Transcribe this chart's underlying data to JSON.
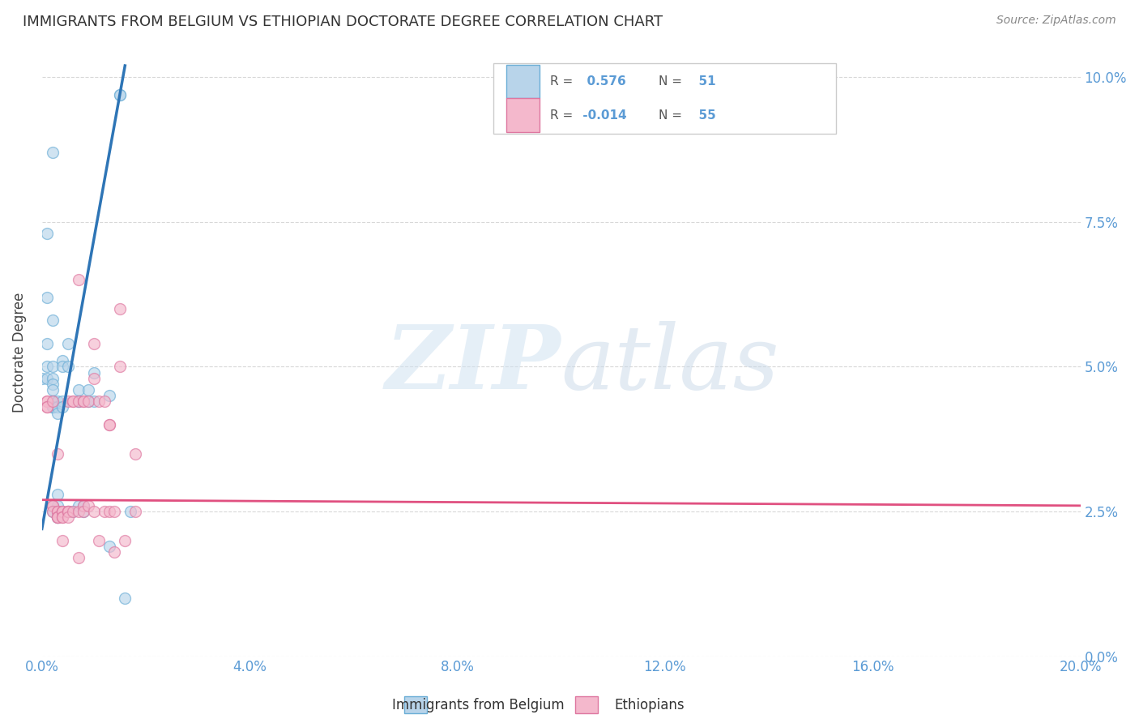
{
  "title": "IMMIGRANTS FROM BELGIUM VS ETHIOPIAN DOCTORATE DEGREE CORRELATION CHART",
  "source": "Source: ZipAtlas.com",
  "ylabel": "Doctorate Degree",
  "x_min": 0.0,
  "x_max": 0.2,
  "y_min": 0.0,
  "y_max": 0.105,
  "x_ticks": [
    0.0,
    0.04,
    0.08,
    0.12,
    0.16,
    0.2
  ],
  "y_ticks": [
    0.0,
    0.025,
    0.05,
    0.075,
    0.1
  ],
  "legend_entries": [
    {
      "label": "Immigrants from Belgium",
      "color": "#b8d4ea",
      "edge_color": "#6baed6",
      "R": "0.576",
      "N": "51"
    },
    {
      "label": "Ethiopians",
      "color": "#f4b8cc",
      "edge_color": "#de77a0",
      "R": "-0.014",
      "N": "55"
    }
  ],
  "belgium_scatter": {
    "color": "#b8d4ea",
    "border_color": "#6baed6",
    "points": [
      [
        0.0,
        0.048
      ],
      [
        0.001,
        0.073
      ],
      [
        0.001,
        0.062
      ],
      [
        0.001,
        0.054
      ],
      [
        0.001,
        0.05
      ],
      [
        0.001,
        0.048
      ],
      [
        0.002,
        0.087
      ],
      [
        0.002,
        0.058
      ],
      [
        0.002,
        0.05
      ],
      [
        0.002,
        0.048
      ],
      [
        0.002,
        0.047
      ],
      [
        0.002,
        0.046
      ],
      [
        0.002,
        0.044
      ],
      [
        0.002,
        0.044
      ],
      [
        0.002,
        0.043
      ],
      [
        0.002,
        0.043
      ],
      [
        0.002,
        0.043
      ],
      [
        0.002,
        0.026
      ],
      [
        0.002,
        0.025
      ],
      [
        0.003,
        0.044
      ],
      [
        0.003,
        0.043
      ],
      [
        0.003,
        0.042
      ],
      [
        0.003,
        0.028
      ],
      [
        0.003,
        0.026
      ],
      [
        0.003,
        0.025
      ],
      [
        0.003,
        0.024
      ],
      [
        0.003,
        0.024
      ],
      [
        0.004,
        0.051
      ],
      [
        0.004,
        0.05
      ],
      [
        0.004,
        0.044
      ],
      [
        0.004,
        0.043
      ],
      [
        0.005,
        0.054
      ],
      [
        0.005,
        0.05
      ],
      [
        0.005,
        0.025
      ],
      [
        0.006,
        0.025
      ],
      [
        0.007,
        0.046
      ],
      [
        0.007,
        0.044
      ],
      [
        0.007,
        0.044
      ],
      [
        0.007,
        0.026
      ],
      [
        0.008,
        0.026
      ],
      [
        0.008,
        0.025
      ],
      [
        0.009,
        0.046
      ],
      [
        0.009,
        0.044
      ],
      [
        0.01,
        0.044
      ],
      [
        0.01,
        0.049
      ],
      [
        0.013,
        0.045
      ],
      [
        0.013,
        0.019
      ],
      [
        0.015,
        0.097
      ],
      [
        0.015,
        0.097
      ],
      [
        0.016,
        0.01
      ],
      [
        0.017,
        0.025
      ]
    ]
  },
  "ethiopian_scatter": {
    "color": "#f4b8cc",
    "border_color": "#de77a0",
    "points": [
      [
        0.001,
        0.044
      ],
      [
        0.001,
        0.044
      ],
      [
        0.001,
        0.043
      ],
      [
        0.001,
        0.043
      ],
      [
        0.002,
        0.044
      ],
      [
        0.002,
        0.026
      ],
      [
        0.002,
        0.026
      ],
      [
        0.002,
        0.025
      ],
      [
        0.003,
        0.035
      ],
      [
        0.003,
        0.025
      ],
      [
        0.003,
        0.025
      ],
      [
        0.003,
        0.024
      ],
      [
        0.003,
        0.024
      ],
      [
        0.003,
        0.024
      ],
      [
        0.004,
        0.025
      ],
      [
        0.004,
        0.025
      ],
      [
        0.004,
        0.025
      ],
      [
        0.004,
        0.024
      ],
      [
        0.004,
        0.024
      ],
      [
        0.004,
        0.02
      ],
      [
        0.005,
        0.044
      ],
      [
        0.005,
        0.025
      ],
      [
        0.005,
        0.025
      ],
      [
        0.005,
        0.025
      ],
      [
        0.005,
        0.024
      ],
      [
        0.006,
        0.044
      ],
      [
        0.006,
        0.044
      ],
      [
        0.006,
        0.025
      ],
      [
        0.007,
        0.065
      ],
      [
        0.007,
        0.044
      ],
      [
        0.007,
        0.025
      ],
      [
        0.007,
        0.017
      ],
      [
        0.008,
        0.044
      ],
      [
        0.008,
        0.026
      ],
      [
        0.008,
        0.025
      ],
      [
        0.008,
        0.044
      ],
      [
        0.009,
        0.044
      ],
      [
        0.009,
        0.026
      ],
      [
        0.01,
        0.054
      ],
      [
        0.01,
        0.048
      ],
      [
        0.01,
        0.025
      ],
      [
        0.011,
        0.044
      ],
      [
        0.012,
        0.044
      ],
      [
        0.012,
        0.025
      ],
      [
        0.013,
        0.04
      ],
      [
        0.013,
        0.025
      ],
      [
        0.014,
        0.025
      ],
      [
        0.015,
        0.06
      ],
      [
        0.015,
        0.05
      ],
      [
        0.018,
        0.025
      ],
      [
        0.013,
        0.04
      ],
      [
        0.011,
        0.02
      ],
      [
        0.014,
        0.018
      ],
      [
        0.016,
        0.02
      ],
      [
        0.018,
        0.035
      ]
    ]
  },
  "belgium_trendline": {
    "color": "#2e75b6",
    "x_start": 0.0,
    "y_start": 0.022,
    "x_end": 0.016,
    "y_end": 0.102
  },
  "ethiopian_trendline": {
    "color": "#e05080",
    "x_start": 0.0,
    "y_start": 0.027,
    "x_end": 0.2,
    "y_end": 0.026
  },
  "background_color": "#ffffff",
  "grid_color": "#d8d8d8",
  "title_color": "#333333",
  "marker_size": 100,
  "marker_alpha": 0.65
}
